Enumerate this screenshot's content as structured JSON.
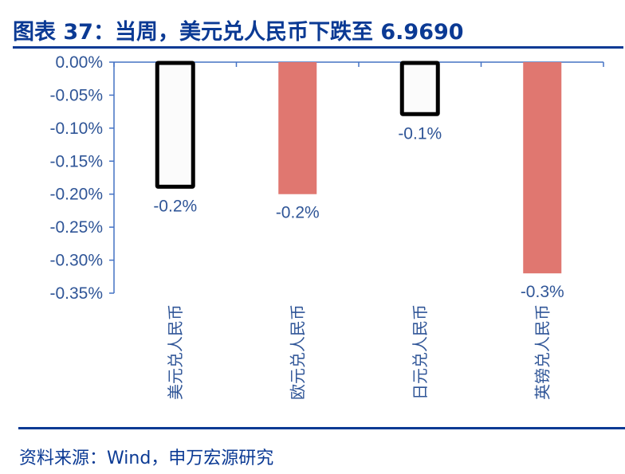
{
  "header": {
    "title": "图表 37：当周，美元兑人民币下跌至 6.9690"
  },
  "footer": {
    "source": "资料来源：Wind，申万宏源研究"
  },
  "colors": {
    "brand_blue": "#0b3a94",
    "axis_blue": "#4472c4",
    "label_blue": "#2f5597",
    "bar_red": "#e07770",
    "bar_outline": "#000000"
  },
  "chart_data": {
    "type": "bar",
    "title": "当周，美元兑人民币下跌至 6.9690",
    "xlabel": "",
    "ylabel": "",
    "categories": [
      "美元兑人民币",
      "欧元兑人民币",
      "日元兑人民币",
      "英镑兑人民币"
    ],
    "values": [
      -0.19,
      -0.2,
      -0.08,
      -0.32
    ],
    "data_labels": [
      "-0.2%",
      "-0.2%",
      "-0.1%",
      "-0.3%"
    ],
    "bar_styles": [
      "outline",
      "filled",
      "outline",
      "filled"
    ],
    "ylim": [
      -0.35,
      0.0
    ],
    "yticks": [
      0.0,
      -0.05,
      -0.1,
      -0.15,
      -0.2,
      -0.25,
      -0.3,
      -0.35
    ],
    "ytick_labels": [
      "0.00%",
      "-0.05%",
      "-0.10%",
      "-0.15%",
      "-0.20%",
      "-0.25%",
      "-0.30%",
      "-0.35%"
    ],
    "grid": false,
    "legend": null,
    "x_axis_position": "top (at 0)"
  }
}
